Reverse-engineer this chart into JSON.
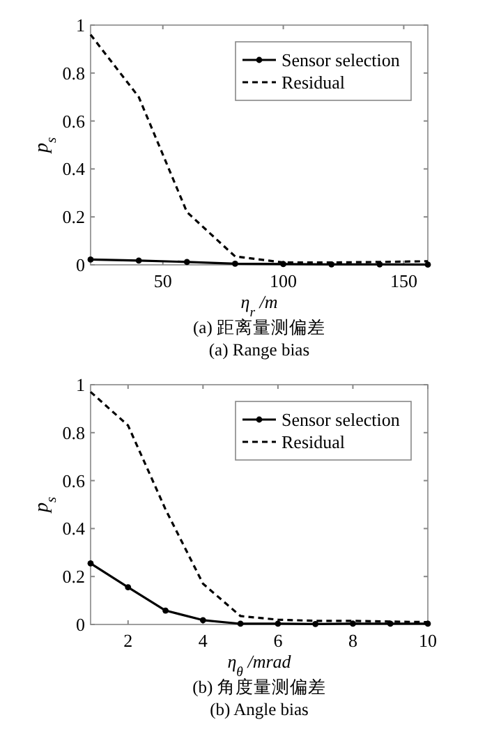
{
  "chart_data": [
    {
      "type": "line",
      "title": "(a) 距离量测偏差",
      "subtitle": "(a) Range bias",
      "xlabel": "η$_{r}$ /m",
      "ylabel": "p$_{s}$",
      "xlim": [
        20,
        160
      ],
      "xticks": [
        50,
        100,
        150
      ],
      "ylim": [
        0,
        1
      ],
      "yticks": [
        0,
        0.2,
        0.4,
        0.6,
        0.8,
        1
      ],
      "legend": "top right",
      "x": [
        20,
        40,
        60,
        80,
        100,
        120,
        140,
        160
      ],
      "series": [
        {
          "name": "Sensor selection",
          "color": "#000000",
          "marker": "circle",
          "line_style": "solid",
          "values": [
            0.022,
            0.018,
            0.012,
            0.005,
            0.003,
            0.002,
            0.002,
            0.001
          ]
        },
        {
          "name": "Residual",
          "color": "#000000",
          "marker": "none",
          "line_style": "dashed",
          "values": [
            0.96,
            0.7,
            0.22,
            0.035,
            0.01,
            0.01,
            0.012,
            0.015
          ]
        }
      ]
    },
    {
      "type": "line",
      "title": "(b) 角度量测偏差",
      "subtitle": "(b) Angle bias",
      "xlabel": "η$_{θ}$ /mrad",
      "ylabel": "p$_{s}$",
      "xlim": [
        1,
        10
      ],
      "xticks": [
        2,
        4,
        6,
        8,
        10
      ],
      "ylim": [
        0,
        1
      ],
      "yticks": [
        0,
        0.2,
        0.4,
        0.6,
        0.8,
        1
      ],
      "legend": "top right",
      "x": [
        1,
        2,
        3,
        4,
        5,
        6,
        7,
        8,
        9,
        10
      ],
      "series": [
        {
          "name": "Sensor selection",
          "color": "#000000",
          "marker": "circle",
          "line_style": "solid",
          "values": [
            0.255,
            0.155,
            0.058,
            0.018,
            0.003,
            0.003,
            0.002,
            0.003,
            0.003,
            0.003
          ]
        },
        {
          "name": "Residual",
          "color": "#000000",
          "marker": "none",
          "line_style": "dashed",
          "values": [
            0.97,
            0.83,
            0.48,
            0.17,
            0.035,
            0.02,
            0.015,
            0.015,
            0.012,
            0.01
          ]
        }
      ]
    }
  ]
}
